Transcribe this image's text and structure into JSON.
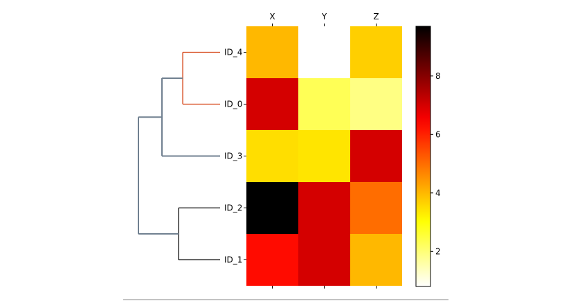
{
  "chart_data": {
    "type": "heatmap",
    "columns": [
      "X",
      "Y",
      "Z"
    ],
    "rows": [
      "ID_4",
      "ID_0",
      "ID_3",
      "ID_2",
      "ID_1"
    ],
    "values": [
      [
        4.0,
        0.8,
        3.7
      ],
      [
        7.0,
        2.3,
        1.9
      ],
      [
        3.5,
        3.4,
        7.0
      ],
      [
        9.7,
        7.0,
        5.0
      ],
      [
        6.3,
        7.0,
        4.0
      ]
    ],
    "colorbar": {
      "colormap": "hot_r",
      "range": [
        0.8,
        9.7
      ],
      "ticks": [
        "2",
        "4",
        "6",
        "8"
      ],
      "tick_values": [
        2,
        4,
        6,
        8
      ]
    },
    "dendrogram": {
      "side": "left",
      "merges": [
        {
          "members": [
            "ID_4",
            "ID_0"
          ],
          "color": "#d33b0a"
        },
        {
          "members": [
            "ID_4",
            "ID_0",
            "ID_3"
          ],
          "color": "#708090"
        },
        {
          "members": [
            "ID_2",
            "ID_1"
          ],
          "color": "#000000"
        },
        {
          "members": [
            "ID_4",
            "ID_0",
            "ID_3",
            "ID_2",
            "ID_1"
          ],
          "color": "#708090"
        }
      ]
    }
  }
}
